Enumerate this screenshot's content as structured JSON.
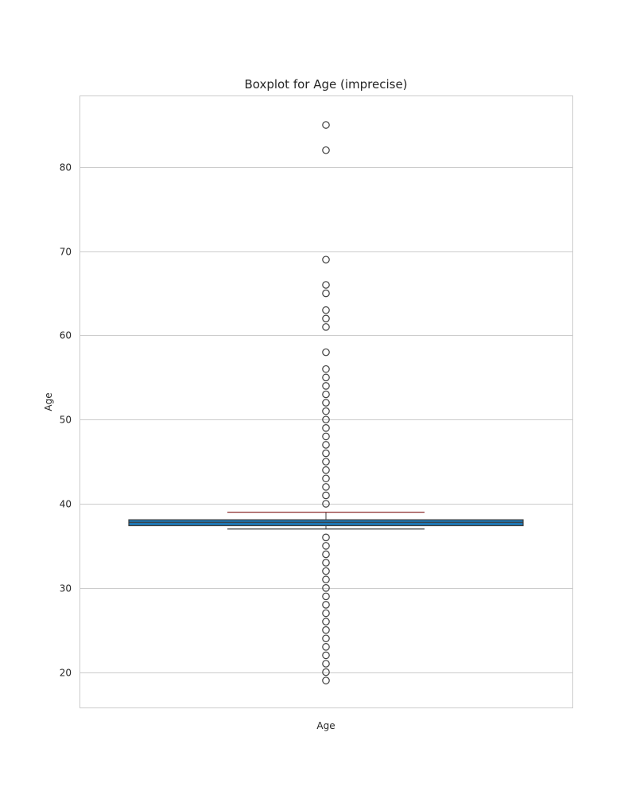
{
  "chart_data": {
    "type": "boxplot",
    "title": "Boxplot for Age (imprecise)",
    "xlabel": "Age",
    "ylabel": "Age",
    "ylim": [
      15.8,
      88.5
    ],
    "yticks": [
      20,
      30,
      40,
      50,
      60,
      70,
      80
    ],
    "grid": true,
    "colors": {
      "box_fill": "#1f77b4",
      "box_edge": "#3d3d3d",
      "median": "#3d3d3d",
      "whisker": "#3d3d3d",
      "cap": "#8b2c2c",
      "outlier_edge": "#3d3d3d",
      "grid": "#cccccc",
      "frame": "#cccccc"
    },
    "box": {
      "q1": 37.4,
      "median": 37.8,
      "q3": 38.1,
      "whisker_low": 37,
      "whisker_high": 39
    },
    "outliers": [
      85,
      82,
      69,
      66,
      65,
      63,
      62,
      61,
      58,
      56,
      55,
      54,
      53,
      52,
      51,
      50,
      49,
      48,
      47,
      46,
      45,
      44,
      43,
      42,
      41,
      40,
      36,
      35,
      34,
      33,
      32,
      31,
      30,
      29,
      28,
      27,
      26,
      25,
      24,
      23,
      22,
      21,
      20,
      19
    ]
  }
}
